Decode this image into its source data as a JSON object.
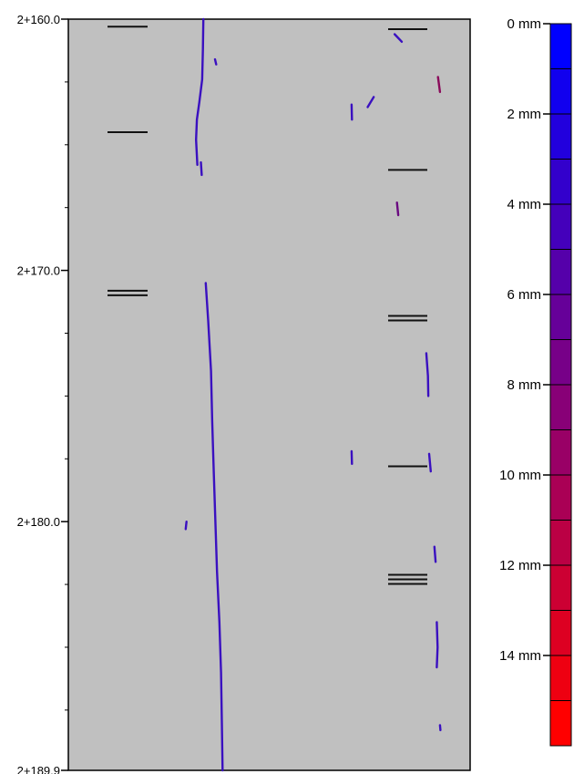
{
  "chart_data": {
    "type": "crack-map",
    "chainage_axis": {
      "labels": [
        "2+160.0",
        "2+170.0",
        "2+180.0",
        "2+189.9"
      ],
      "values": [
        160.0,
        170.0,
        180.0,
        189.9
      ],
      "min": 160.0,
      "max": 189.9
    },
    "panel_background": "#c0c0c0",
    "color_scale": {
      "labels": [
        "0 mm",
        "2 mm",
        "4 mm",
        "6 mm",
        "8 mm",
        "10 mm",
        "12 mm",
        "14 mm"
      ],
      "label_values": [
        0,
        2,
        4,
        6,
        8,
        10,
        12,
        14
      ],
      "bands": 16,
      "min_mm": 0,
      "max_mm": 16,
      "color_start": "#0000ff",
      "color_end": "#ff0000"
    },
    "joint_marks_left": [
      {
        "chainage": 160.3,
        "lines": 1
      },
      {
        "chainage": 164.5,
        "lines": 1
      },
      {
        "chainage": 170.9,
        "lines": 2
      }
    ],
    "joint_marks_right": [
      {
        "chainage": 160.4,
        "lines": 1
      },
      {
        "chainage": 166.0,
        "lines": 1
      },
      {
        "chainage": 171.9,
        "lines": 2
      },
      {
        "chainage": 177.8,
        "lines": 1
      },
      {
        "chainage": 182.3,
        "lines": 3
      }
    ],
    "cracks": [
      {
        "color": "#3a10c0",
        "points": [
          [
            0.336,
            160.0
          ],
          [
            0.335,
            161.2
          ],
          [
            0.333,
            162.4
          ],
          [
            0.326,
            163.3
          ],
          [
            0.32,
            164.0
          ],
          [
            0.318,
            164.8
          ],
          [
            0.321,
            165.8
          ]
        ]
      },
      {
        "color": "#3a10c0",
        "points": [
          [
            0.33,
            165.7
          ],
          [
            0.332,
            166.2
          ]
        ]
      },
      {
        "color": "#3a10c0",
        "points": [
          [
            0.342,
            170.5
          ],
          [
            0.348,
            172.0
          ],
          [
            0.355,
            174.0
          ],
          [
            0.358,
            176.0
          ],
          [
            0.362,
            178.0
          ],
          [
            0.366,
            180.0
          ],
          [
            0.37,
            182.0
          ],
          [
            0.376,
            184.0
          ],
          [
            0.38,
            186.0
          ],
          [
            0.382,
            188.0
          ],
          [
            0.384,
            189.9
          ]
        ]
      },
      {
        "color": "#3a10c0",
        "points": [
          [
            0.365,
            161.6
          ],
          [
            0.368,
            161.8
          ]
        ]
      },
      {
        "color": "#3a10c0",
        "points": [
          [
            0.294,
            180.0
          ],
          [
            0.292,
            180.3
          ]
        ]
      },
      {
        "color": "#3a10c0",
        "points": [
          [
            0.705,
            163.4
          ],
          [
            0.706,
            164.0
          ]
        ]
      },
      {
        "color": "#3a10c0",
        "points": [
          [
            0.745,
            163.5
          ],
          [
            0.76,
            163.1
          ]
        ]
      },
      {
        "color": "#3a10c0",
        "points": [
          [
            0.812,
            160.6
          ],
          [
            0.83,
            160.9
          ]
        ]
      },
      {
        "color": "#8a0a5a",
        "points": [
          [
            0.92,
            162.3
          ],
          [
            0.925,
            162.9
          ]
        ]
      },
      {
        "color": "#6a0a80",
        "points": [
          [
            0.818,
            167.3
          ],
          [
            0.821,
            167.8
          ]
        ]
      },
      {
        "color": "#3a10c0",
        "points": [
          [
            0.891,
            173.3
          ],
          [
            0.895,
            174.2
          ],
          [
            0.896,
            175.0
          ]
        ]
      },
      {
        "color": "#3a10c0",
        "points": [
          [
            0.705,
            177.2
          ],
          [
            0.706,
            177.7
          ]
        ]
      },
      {
        "color": "#3a10c0",
        "points": [
          [
            0.898,
            177.3
          ],
          [
            0.902,
            178.0
          ]
        ]
      },
      {
        "color": "#3a10c0",
        "points": [
          [
            0.911,
            181.0
          ],
          [
            0.914,
            181.6
          ]
        ]
      },
      {
        "color": "#3a10c0",
        "points": [
          [
            0.917,
            184.0
          ],
          [
            0.919,
            185.0
          ],
          [
            0.917,
            185.8
          ]
        ]
      },
      {
        "color": "#3a10c0",
        "points": [
          [
            0.925,
            188.1
          ],
          [
            0.926,
            188.3
          ]
        ]
      }
    ]
  }
}
